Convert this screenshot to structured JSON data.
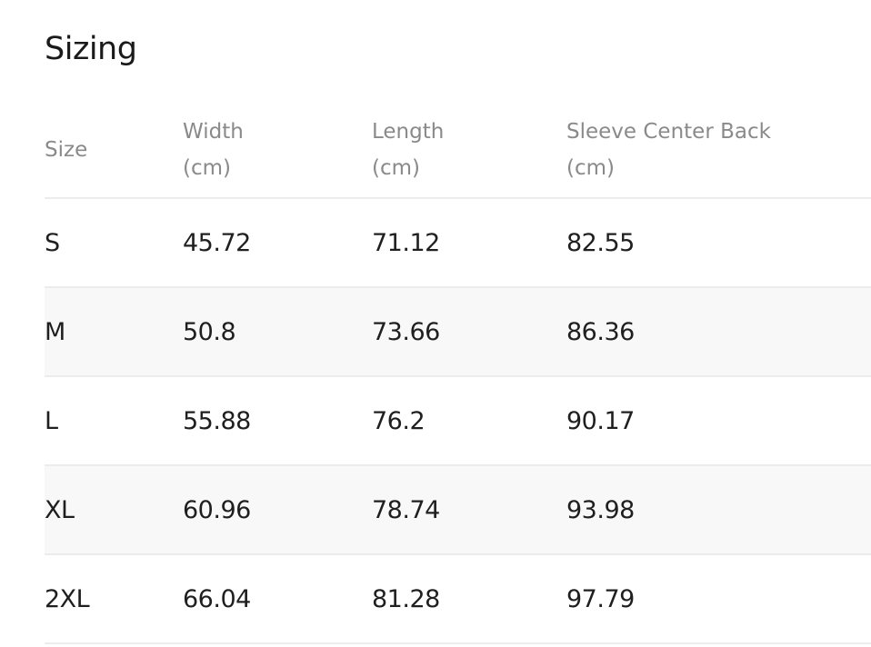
{
  "header": {
    "title": "Sizing"
  },
  "table": {
    "headers": [
      "Size",
      "Width (cm)",
      "Length (cm)",
      "Sleeve Center Back (cm)"
    ],
    "rows": [
      [
        "S",
        "45.72",
        "71.12",
        "82.55"
      ],
      [
        "M",
        "50.8",
        "73.66",
        "86.36"
      ],
      [
        "L",
        "55.88",
        "76.2",
        "90.17"
      ],
      [
        "XL",
        "60.96",
        "78.74",
        "93.98"
      ],
      [
        "2XL",
        "66.04",
        "81.28",
        "97.79"
      ]
    ]
  }
}
